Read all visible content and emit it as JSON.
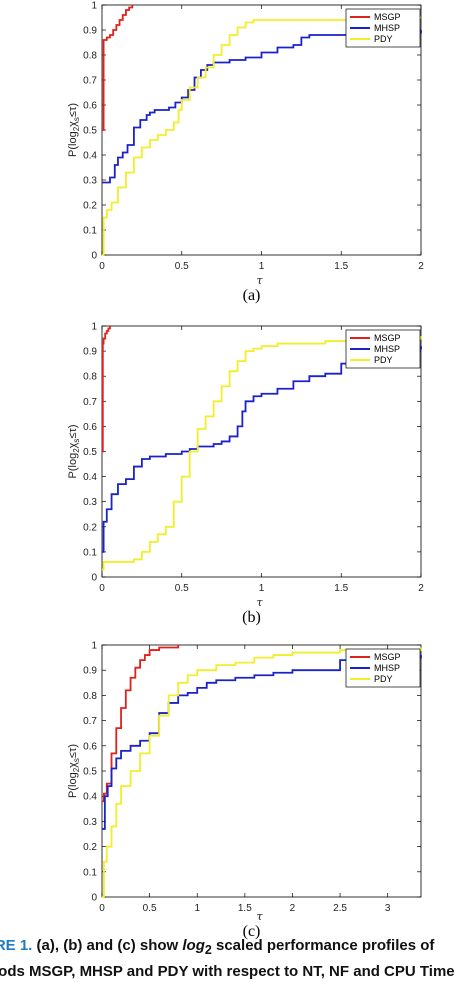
{
  "caption": {
    "label": "URE 1.",
    "line1_a": "(a), (b) and (c) show",
    "line1_log": "log",
    "line1_sub": "2",
    "line1_b": "scaled performance profiles of",
    "line2": "thods MSGP, MHSP and PDY with respect to NT, NF and CPU Time"
  },
  "colors": {
    "MSGP": "#e0201c",
    "MHSP": "#1a22c8",
    "PDY": "#f2ee2a"
  },
  "chart_data": [
    {
      "type": "line",
      "panel_label": "(a)",
      "xlabel": "τ",
      "ylabel_parts": [
        "P(log",
        "2",
        "χ",
        "s",
        "≤τ)"
      ],
      "xlim": [
        0,
        2
      ],
      "ylim": [
        0,
        1
      ],
      "xticks": [
        0,
        0.5,
        1,
        1.5,
        2
      ],
      "xtick_labels": [
        "0",
        "0.5",
        "1",
        "1.5",
        "2"
      ],
      "yticks": [
        0,
        0.1,
        0.2,
        0.3,
        0.4,
        0.5,
        0.6,
        0.7,
        0.8,
        0.9,
        1
      ],
      "ytick_labels": [
        "0",
        "0.1",
        "0.2",
        "0.3",
        "0.4",
        "0.5",
        "0.6",
        "0.7",
        "0.8",
        "0.9",
        "1"
      ],
      "legend_position": "top-right",
      "series": [
        {
          "name": "MSGP",
          "x": [
            0,
            0.01,
            0.03,
            0.05,
            0.07,
            0.09,
            0.11,
            0.13,
            0.15,
            0.17,
            0.19
          ],
          "y": [
            0.5,
            0.86,
            0.87,
            0.88,
            0.9,
            0.92,
            0.94,
            0.96,
            0.98,
            0.99,
            1.0
          ]
        },
        {
          "name": "MHSP",
          "x": [
            0,
            0.05,
            0.08,
            0.1,
            0.13,
            0.16,
            0.2,
            0.24,
            0.28,
            0.3,
            0.33,
            0.38,
            0.42,
            0.46,
            0.5,
            0.54,
            0.58,
            0.62,
            0.66,
            0.7,
            0.8,
            0.9,
            1.0,
            1.1,
            1.2,
            1.25,
            1.3,
            1.4,
            1.5,
            1.6,
            1.7,
            1.8,
            1.9,
            2.0
          ],
          "y": [
            0.29,
            0.31,
            0.36,
            0.39,
            0.41,
            0.44,
            0.51,
            0.54,
            0.56,
            0.57,
            0.58,
            0.58,
            0.59,
            0.61,
            0.63,
            0.66,
            0.71,
            0.74,
            0.76,
            0.77,
            0.78,
            0.79,
            0.81,
            0.83,
            0.84,
            0.87,
            0.88,
            0.88,
            0.88,
            0.88,
            0.88,
            0.89,
            0.89,
            0.9
          ]
        },
        {
          "name": "PDY",
          "x": [
            0,
            0.01,
            0.03,
            0.06,
            0.1,
            0.15,
            0.2,
            0.25,
            0.3,
            0.35,
            0.4,
            0.45,
            0.48,
            0.5,
            0.55,
            0.6,
            0.65,
            0.7,
            0.75,
            0.8,
            0.85,
            0.9,
            0.95,
            1.0,
            1.1,
            1.2,
            1.3,
            1.4,
            1.5,
            1.6,
            1.7,
            1.8,
            1.9,
            2.0
          ],
          "y": [
            0.0,
            0.15,
            0.18,
            0.21,
            0.27,
            0.33,
            0.39,
            0.43,
            0.46,
            0.48,
            0.5,
            0.53,
            0.58,
            0.62,
            0.67,
            0.71,
            0.75,
            0.8,
            0.84,
            0.88,
            0.91,
            0.93,
            0.94,
            0.94,
            0.94,
            0.94,
            0.94,
            0.94,
            0.94,
            0.94,
            0.94,
            0.94,
            0.95,
            0.95
          ]
        }
      ]
    },
    {
      "type": "line",
      "panel_label": "(b)",
      "xlabel": "τ",
      "ylabel_parts": [
        "P(log",
        "2",
        "χ",
        "s",
        "≤τ)"
      ],
      "xlim": [
        0,
        2
      ],
      "ylim": [
        0,
        1
      ],
      "xticks": [
        0,
        0.5,
        1,
        1.5,
        2
      ],
      "xtick_labels": [
        "0",
        "0.5",
        "1",
        "1.5",
        "2"
      ],
      "yticks": [
        0,
        0.1,
        0.2,
        0.3,
        0.4,
        0.5,
        0.6,
        0.7,
        0.8,
        0.9,
        1
      ],
      "ytick_labels": [
        "0",
        "0.1",
        "0.2",
        "0.3",
        "0.4",
        "0.5",
        "0.6",
        "0.7",
        "0.8",
        "0.9",
        "1"
      ],
      "legend_position": "top-right",
      "series": [
        {
          "name": "MSGP",
          "x": [
            0,
            0.005,
            0.01,
            0.02,
            0.03,
            0.04,
            0.05
          ],
          "y": [
            0.5,
            0.93,
            0.95,
            0.97,
            0.98,
            0.99,
            1.0
          ]
        },
        {
          "name": "MHSP",
          "x": [
            0,
            0.01,
            0.03,
            0.06,
            0.1,
            0.15,
            0.2,
            0.25,
            0.3,
            0.4,
            0.5,
            0.55,
            0.6,
            0.65,
            0.7,
            0.75,
            0.8,
            0.85,
            0.88,
            0.9,
            0.95,
            1.0,
            1.1,
            1.2,
            1.3,
            1.4,
            1.5,
            1.6,
            1.7,
            1.8,
            1.9,
            2.0
          ],
          "y": [
            0.1,
            0.22,
            0.27,
            0.33,
            0.37,
            0.39,
            0.44,
            0.47,
            0.48,
            0.49,
            0.5,
            0.51,
            0.52,
            0.52,
            0.53,
            0.54,
            0.56,
            0.6,
            0.66,
            0.7,
            0.72,
            0.73,
            0.75,
            0.78,
            0.8,
            0.81,
            0.85,
            0.87,
            0.88,
            0.9,
            0.91,
            0.92
          ]
        },
        {
          "name": "PDY",
          "x": [
            0,
            0.01,
            0.1,
            0.2,
            0.25,
            0.3,
            0.35,
            0.4,
            0.45,
            0.5,
            0.55,
            0.6,
            0.65,
            0.7,
            0.75,
            0.8,
            0.85,
            0.9,
            0.95,
            1.0,
            1.1,
            1.2,
            1.3,
            1.4,
            1.5,
            1.6,
            1.7,
            1.8,
            1.9,
            2.0
          ],
          "y": [
            0.03,
            0.06,
            0.06,
            0.07,
            0.1,
            0.14,
            0.17,
            0.2,
            0.3,
            0.4,
            0.5,
            0.59,
            0.64,
            0.7,
            0.76,
            0.82,
            0.86,
            0.9,
            0.91,
            0.92,
            0.93,
            0.93,
            0.93,
            0.94,
            0.94,
            0.94,
            0.95,
            0.95,
            0.95,
            0.96
          ]
        }
      ]
    },
    {
      "type": "line",
      "panel_label": "(c)",
      "xlabel": "τ",
      "ylabel_parts": [
        "P(log",
        "2",
        "χ",
        "s",
        "≤τ)"
      ],
      "xlim": [
        0,
        3.35
      ],
      "ylim": [
        0,
        1
      ],
      "xticks": [
        0,
        0.5,
        1,
        1.5,
        2,
        2.5,
        3
      ],
      "xtick_labels": [
        "0",
        "0.5",
        "1",
        "1.5",
        "2",
        "2.5",
        "3"
      ],
      "yticks": [
        0,
        0.1,
        0.2,
        0.3,
        0.4,
        0.5,
        0.6,
        0.7,
        0.8,
        0.9,
        1
      ],
      "ytick_labels": [
        "0",
        "0.1",
        "0.2",
        "0.3",
        "0.4",
        "0.5",
        "0.6",
        "0.7",
        "0.8",
        "0.9",
        "1"
      ],
      "legend_position": "top-right",
      "series": [
        {
          "name": "MSGP",
          "x": [
            0,
            0.02,
            0.05,
            0.1,
            0.15,
            0.2,
            0.25,
            0.3,
            0.35,
            0.4,
            0.45,
            0.5,
            0.6,
            0.7,
            0.8
          ],
          "y": [
            0.38,
            0.41,
            0.45,
            0.57,
            0.67,
            0.75,
            0.82,
            0.87,
            0.91,
            0.94,
            0.96,
            0.98,
            0.99,
            0.99,
            1.0
          ]
        },
        {
          "name": "MHSP",
          "x": [
            0,
            0.03,
            0.06,
            0.1,
            0.15,
            0.2,
            0.3,
            0.4,
            0.5,
            0.6,
            0.7,
            0.8,
            0.9,
            1.0,
            1.1,
            1.2,
            1.4,
            1.6,
            1.8,
            2.0,
            2.5,
            3.0,
            3.35
          ],
          "y": [
            0.27,
            0.4,
            0.44,
            0.51,
            0.55,
            0.58,
            0.6,
            0.62,
            0.65,
            0.73,
            0.77,
            0.8,
            0.81,
            0.83,
            0.85,
            0.86,
            0.87,
            0.88,
            0.89,
            0.9,
            0.94,
            0.95,
            0.96
          ]
        },
        {
          "name": "PDY",
          "x": [
            0,
            0.02,
            0.05,
            0.1,
            0.15,
            0.2,
            0.3,
            0.4,
            0.5,
            0.6,
            0.7,
            0.8,
            0.9,
            1.0,
            1.2,
            1.4,
            1.6,
            1.8,
            2.0,
            2.5,
            3.0,
            3.35
          ],
          "y": [
            0.0,
            0.14,
            0.2,
            0.28,
            0.37,
            0.44,
            0.5,
            0.57,
            0.64,
            0.72,
            0.8,
            0.85,
            0.88,
            0.9,
            0.92,
            0.93,
            0.95,
            0.96,
            0.97,
            0.98,
            0.98,
            0.99
          ]
        }
      ]
    }
  ]
}
